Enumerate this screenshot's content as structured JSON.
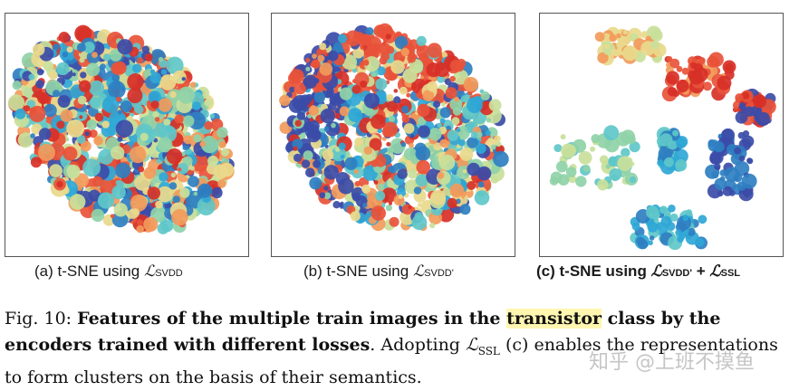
{
  "subfigures": {
    "a": {
      "prefix": "(a) t-SNE using ",
      "math": "ℒ",
      "sub": "SVDD"
    },
    "b": {
      "prefix": "(b) t-SNE using ",
      "math": "ℒ",
      "sub": "SVDD'"
    },
    "c": {
      "prefix": "(c) t-SNE using ",
      "math1": "ℒ",
      "sub1": "SVDD'",
      "plus": " + ",
      "math2": "ℒ",
      "sub2": "SSL"
    }
  },
  "caption": {
    "label": "Fig. 10: ",
    "bold_part1": "Features of the multiple train images in the ",
    "highlight": "transistor",
    "bold_part2": " class by the encoders trained with different losses",
    "normal_part1": ". Adopting ",
    "math": "ℒ",
    "math_sub": "SSL",
    "normal_part2": " (c) enables the representations to form clusters on the basis of their semantics."
  },
  "watermark": "知乎 @上班不摸鱼",
  "colors": {
    "palette": [
      "#3b4ca8",
      "#2f7fc1",
      "#2fa7d6",
      "#5fc7c9",
      "#8fd3a8",
      "#c9df9a",
      "#e9d98c",
      "#f29a5b",
      "#e8523a",
      "#d73027"
    ]
  }
}
